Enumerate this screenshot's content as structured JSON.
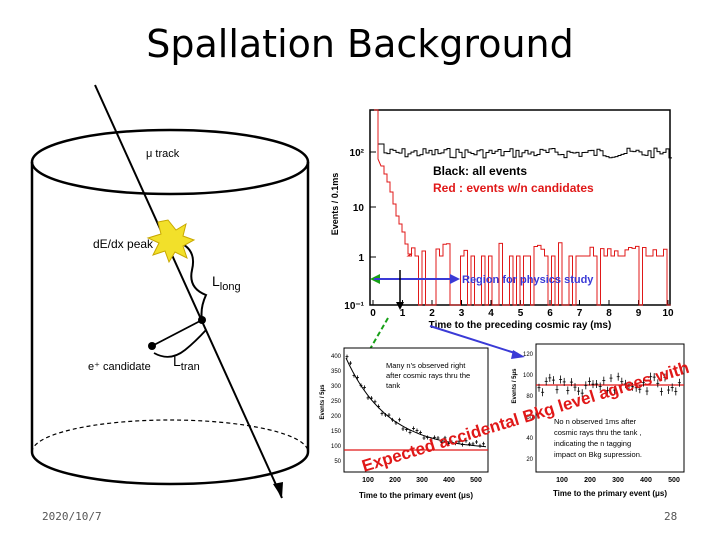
{
  "slide": {
    "title": "Spallation Background",
    "date": "2020/10/7",
    "page": "28"
  },
  "diagram": {
    "track_label": "μ track",
    "dedx_label": "dE/dx peak",
    "llong_label": "L",
    "llong_sub": "long",
    "ltran_label": "L",
    "ltran_sub": "tran",
    "candidate_label": "e⁺ candidate"
  },
  "top_plot": {
    "ylabel": "Events / 0.1ms",
    "xlabel": "Time to the preceding cosmic ray (ms)",
    "legend_black": "Black: all events",
    "legend_red": "Red   : events w/n candidates",
    "region_label": "Region for physics study",
    "y_ticks": [
      "10²",
      "10",
      "1",
      "10⁻¹"
    ],
    "x_ticks": [
      "0",
      "1",
      "2",
      "3",
      "4",
      "5",
      "6",
      "7",
      "8",
      "9",
      "10"
    ]
  },
  "bottom_left_plot": {
    "ylabel": "Events / 5μs",
    "xlabel": "Time to the primary event (μs)",
    "note_line1": "Many n's observed right",
    "note_line2": "after cosmic rays thru the",
    "note_line3": "tank",
    "y_ticks": [
      "400",
      "350",
      "300",
      "250",
      "200",
      "150",
      "100",
      "50"
    ],
    "x_ticks": [
      "100",
      "200",
      "300",
      "400",
      "500"
    ]
  },
  "bottom_right_plot": {
    "ylabel": "Events / 5μs",
    "xlabel": "Time to the primary event (μs)",
    "note_line1": "No n observed 1ms after",
    "note_line2": "cosmic rays thru the tank ,",
    "note_line3": "indicating the n tagging",
    "note_line4": "impact on Bkg supression.",
    "y_ticks": [
      "120",
      "100",
      "80",
      "60",
      "40",
      "20"
    ],
    "x_ticks": [
      "100",
      "200",
      "300",
      "400",
      "500"
    ]
  },
  "overlay_text": {
    "line1": "Expected accidental Bkg level agrees with data!"
  },
  "colors": {
    "red": "#e01818",
    "blue": "#3a3ad6",
    "green": "#18a018",
    "yellow": "#f2e02a"
  }
}
